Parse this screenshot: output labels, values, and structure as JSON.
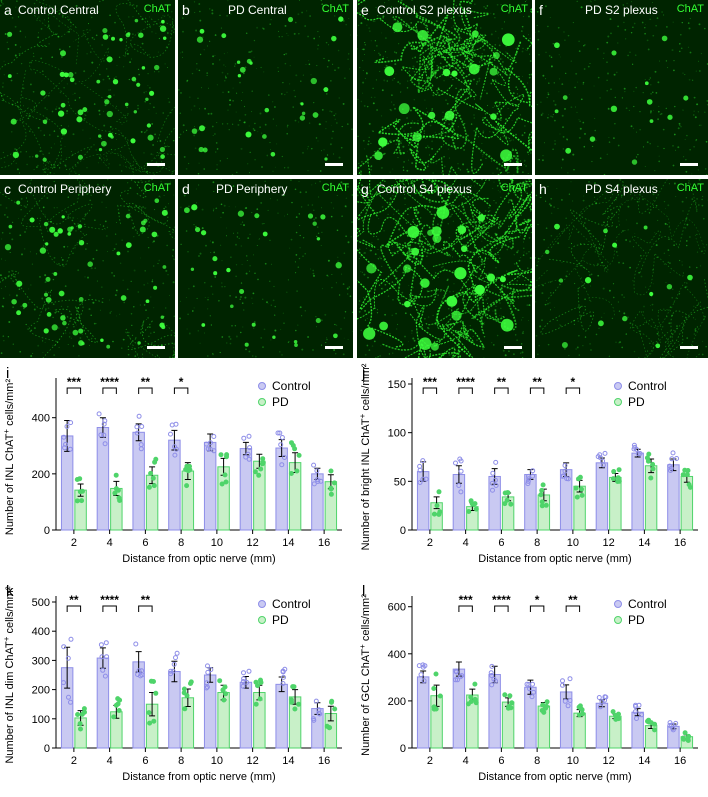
{
  "panels": [
    {
      "letter": "a",
      "title": "Control Central",
      "stain": "ChAT",
      "seed": 11,
      "density": "medium",
      "fibers": true
    },
    {
      "letter": "b",
      "title": "PD Central",
      "stain": "ChAT",
      "seed": 23,
      "density": "low",
      "fibers": false
    },
    {
      "letter": "e",
      "title": "Control S2 plexus",
      "stain": "ChAT",
      "seed": 37,
      "density": "plexus",
      "fibers": true
    },
    {
      "letter": "f",
      "title": "PD S2 plexus",
      "stain": "ChAT",
      "seed": 41,
      "density": "sparse",
      "fibers": false
    },
    {
      "letter": "c",
      "title": "Control Periphery",
      "stain": "ChAT",
      "seed": 53,
      "density": "medium",
      "fibers": true
    },
    {
      "letter": "d",
      "title": "PD Periphery",
      "stain": "ChAT",
      "seed": 61,
      "density": "low",
      "fibers": false
    },
    {
      "letter": "g",
      "title": "Control S4 plexus",
      "stain": "ChAT",
      "seed": 71,
      "density": "plexus-dense",
      "fibers": true
    },
    {
      "letter": "h",
      "title": "PD S4 plexus",
      "stain": "ChAT",
      "seed": 83,
      "density": "sparse",
      "fibers": true
    }
  ],
  "colors": {
    "control": "#8e8ee8",
    "control_fill": "#c9c9f2",
    "pd": "#4fd46a",
    "pd_fill": "#c8f0c8",
    "stain": "#33ff33"
  },
  "chart_data": [
    {
      "letter": "i",
      "type": "bar",
      "ylabel_pre": "Number of INL ChAT",
      "ylabel_sup": "+",
      "ylabel_post": " cells/mm²",
      "xlabel": "Distance from optic nerve (mm)",
      "categories": [
        "2",
        "4",
        "6",
        "8",
        "10",
        "12",
        "14",
        "16"
      ],
      "yticks": [
        0,
        200,
        400
      ],
      "ylim": [
        0,
        520
      ],
      "legend_placement": "top-right",
      "series": [
        {
          "name": "Control",
          "values": [
            335,
            365,
            348,
            320,
            312,
            290,
            292,
            200
          ],
          "errors": [
            55,
            35,
            30,
            35,
            30,
            22,
            30,
            20
          ]
        },
        {
          "name": "PD",
          "values": [
            142,
            148,
            195,
            210,
            225,
            245,
            240,
            172
          ],
          "errors": [
            22,
            25,
            30,
            30,
            30,
            25,
            35,
            25
          ]
        }
      ],
      "significance": [
        {
          "index": 0,
          "label": "***"
        },
        {
          "index": 1,
          "label": "****"
        },
        {
          "index": 2,
          "label": "**"
        },
        {
          "index": 3,
          "label": "*"
        }
      ]
    },
    {
      "letter": "j",
      "type": "bar",
      "ylabel_pre": "Number of bright INL ChAT",
      "ylabel_sup": "+",
      "ylabel_post": " cells/mm²",
      "xlabel": "Distance from optic nerve (mm)",
      "categories": [
        "2",
        "4",
        "6",
        "8",
        "10",
        "12",
        "14",
        "16"
      ],
      "yticks": [
        0,
        50,
        100,
        150
      ],
      "ylim": [
        0,
        150
      ],
      "legend_placement": "top-right",
      "series": [
        {
          "name": "Control",
          "values": [
            60,
            57,
            55,
            57,
            62,
            69,
            79,
            67
          ],
          "errors": [
            10,
            9,
            8,
            5,
            7,
            5,
            4,
            6
          ]
        },
        {
          "name": "PD",
          "values": [
            28,
            24,
            34,
            36,
            45,
            54,
            66,
            55
          ],
          "errors": [
            6,
            4,
            4,
            6,
            6,
            4,
            7,
            6
          ]
        }
      ],
      "significance": [
        {
          "index": 0,
          "label": "***"
        },
        {
          "index": 1,
          "label": "****"
        },
        {
          "index": 2,
          "label": "**"
        },
        {
          "index": 3,
          "label": "**"
        },
        {
          "index": 4,
          "label": "*"
        }
      ]
    },
    {
      "letter": "k",
      "type": "bar",
      "ylabel_pre": "Number of INL dim ChAT",
      "ylabel_sup": "+",
      "ylabel_post": " cells/mm²",
      "xlabel": "Distance from optic nerve (mm)",
      "categories": [
        "2",
        "4",
        "6",
        "8",
        "10",
        "12",
        "14",
        "16"
      ],
      "yticks": [
        0,
        100,
        200,
        300,
        400,
        500
      ],
      "ylim": [
        0,
        500
      ],
      "legend_placement": "top-right",
      "series": [
        {
          "name": "Control",
          "values": [
            275,
            308,
            295,
            262,
            250,
            225,
            218,
            135
          ],
          "errors": [
            70,
            35,
            35,
            35,
            25,
            20,
            25,
            20
          ]
        },
        {
          "name": "PD",
          "values": [
            103,
            124,
            150,
            172,
            190,
            190,
            175,
            118
          ],
          "errors": [
            25,
            22,
            40,
            30,
            25,
            25,
            25,
            25
          ]
        }
      ],
      "significance": [
        {
          "index": 0,
          "label": "**"
        },
        {
          "index": 1,
          "label": "****"
        },
        {
          "index": 2,
          "label": "**"
        }
      ]
    },
    {
      "letter": "l",
      "type": "bar",
      "ylabel_pre": "Number of GCL ChAT",
      "ylabel_sup": "+",
      "ylabel_post": " cells/mm²",
      "xlabel": "Distance from optic nerve (mm)",
      "categories": [
        "2",
        "4",
        "6",
        "8",
        "10",
        "12",
        "14",
        "16"
      ],
      "yticks": [
        0,
        200,
        400,
        600
      ],
      "ylim": [
        0,
        620
      ],
      "legend_placement": "top-right",
      "series": [
        {
          "name": "Control",
          "values": [
            302,
            335,
            312,
            258,
            238,
            190,
            152,
            92
          ],
          "errors": [
            25,
            30,
            35,
            30,
            30,
            15,
            15,
            10
          ]
        },
        {
          "name": "PD",
          "values": [
            222,
            225,
            195,
            178,
            148,
            135,
            95,
            48
          ],
          "errors": [
            45,
            25,
            18,
            15,
            15,
            10,
            12,
            8
          ]
        }
      ],
      "significance": [
        {
          "index": 1,
          "label": "***"
        },
        {
          "index": 2,
          "label": "****"
        },
        {
          "index": 3,
          "label": "*"
        },
        {
          "index": 4,
          "label": "**"
        }
      ]
    }
  ]
}
